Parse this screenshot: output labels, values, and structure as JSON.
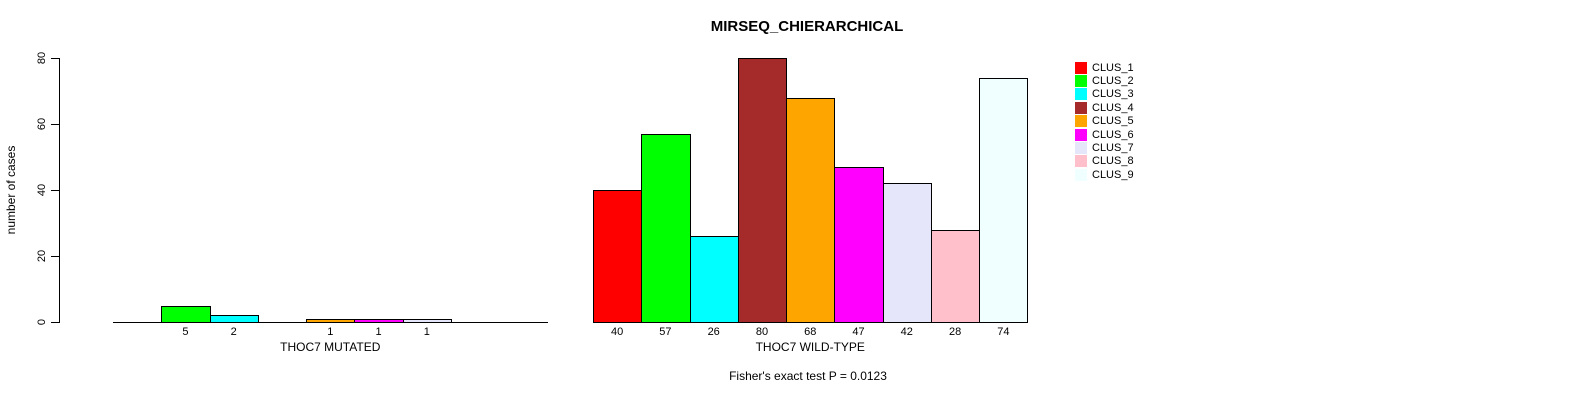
{
  "title": "MIRSEQ_CHIERARCHICAL",
  "ylabel": "number of cases",
  "note": "Fisher's exact test P = 0.0123",
  "chart_data": {
    "type": "bar",
    "title": "MIRSEQ_CHIERARCHICAL",
    "ylabel": "number of cases",
    "ylim": [
      0,
      80
    ],
    "yticks": [
      0,
      20,
      40,
      60,
      80
    ],
    "grid": false,
    "legend_position": "right",
    "legend_entries": [
      "CLUS_1",
      "CLUS_2",
      "CLUS_3",
      "CLUS_4",
      "CLUS_5",
      "CLUS_6",
      "CLUS_7",
      "CLUS_8",
      "CLUS_9"
    ],
    "cluster_colors": [
      "#ff0000",
      "#00ff00",
      "#00ffff",
      "#a52a2a",
      "#ffa500",
      "#ff00ff",
      "#e6e6fa",
      "#ffc0cb",
      "#f0ffff"
    ],
    "groups": [
      {
        "label": "THOC7 MUTATED",
        "values": [
          0,
          5,
          2,
          0,
          1,
          1,
          1,
          0,
          0
        ]
      },
      {
        "label": "THOC7 WILD-TYPE",
        "values": [
          40,
          57,
          26,
          80,
          68,
          47,
          42,
          28,
          74
        ]
      }
    ],
    "bar_value_labels_shown_when": "value > 0",
    "annotation": "Fisher's exact test P = 0.0123"
  }
}
